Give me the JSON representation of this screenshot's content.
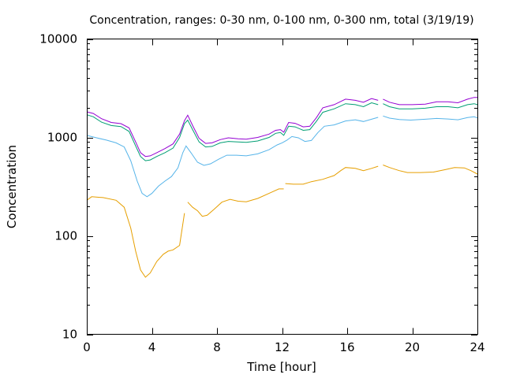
{
  "chart_data": {
    "type": "line",
    "title": "Concentration, ranges: 0-30 nm, 0-100 nm, 0-300 nm, total (3/19/19)",
    "xlabel": "Time [hour]",
    "ylabel": "Concentration",
    "xlim": [
      0,
      24
    ],
    "ylim": [
      10,
      10000
    ],
    "yscale": "log",
    "grid": false,
    "x_ticks": [
      0,
      4,
      8,
      12,
      16,
      20,
      24
    ],
    "x_tick_labels": [
      "0",
      "4",
      "8",
      "12",
      "16",
      "20",
      "24"
    ],
    "y_ticks": [
      10,
      100,
      1000,
      10000
    ],
    "y_tick_labels": [
      "10",
      "100",
      "1000",
      "10000"
    ],
    "series": [
      {
        "color": "#e69f00",
        "segments": [
          [
            [
              0,
              230
            ],
            [
              0.3,
              250
            ],
            [
              1,
              245
            ],
            [
              1.8,
              230
            ],
            [
              2.3,
              195
            ],
            [
              2.7,
              120
            ],
            [
              3,
              70
            ],
            [
              3.3,
              45
            ],
            [
              3.6,
              38
            ],
            [
              3.9,
              42
            ],
            [
              4.3,
              55
            ],
            [
              4.7,
              65
            ],
            [
              5,
              70
            ],
            [
              5.3,
              72
            ],
            [
              5.7,
              80
            ],
            [
              6,
              170
            ]
          ],
          [
            [
              6.2,
              220
            ],
            [
              6.5,
              195
            ],
            [
              6.8,
              180
            ],
            [
              7.1,
              158
            ],
            [
              7.4,
              162
            ],
            [
              7.8,
              185
            ],
            [
              8.3,
              220
            ],
            [
              8.8,
              235
            ],
            [
              9.3,
              225
            ],
            [
              9.8,
              222
            ],
            [
              10.5,
              240
            ],
            [
              11.3,
              275
            ],
            [
              11.8,
              300
            ],
            [
              12.1,
              300
            ]
          ],
          [
            [
              12.2,
              340
            ],
            [
              12.7,
              335
            ],
            [
              13.3,
              335
            ],
            [
              13.8,
              355
            ],
            [
              14.5,
              375
            ],
            [
              15.2,
              410
            ],
            [
              15.6,
              460
            ],
            [
              15.9,
              495
            ],
            [
              16.5,
              485
            ],
            [
              17,
              460
            ],
            [
              17.5,
              485
            ],
            [
              17.9,
              510
            ]
          ],
          [
            [
              18.2,
              525
            ],
            [
              18.6,
              495
            ],
            [
              19.2,
              460
            ],
            [
              19.7,
              440
            ],
            [
              20.5,
              440
            ],
            [
              21.3,
              445
            ],
            [
              22,
              470
            ],
            [
              22.6,
              495
            ],
            [
              23.2,
              490
            ],
            [
              23.6,
              460
            ],
            [
              24,
              425
            ]
          ]
        ]
      },
      {
        "color": "#56b4e9",
        "segments": [
          [
            [
              0,
              1050
            ],
            [
              0.5,
              1000
            ],
            [
              1.2,
              940
            ],
            [
              1.8,
              880
            ],
            [
              2.3,
              800
            ],
            [
              2.7,
              580
            ],
            [
              3.1,
              360
            ],
            [
              3.4,
              270
            ],
            [
              3.7,
              250
            ],
            [
              4,
              270
            ],
            [
              4.4,
              320
            ],
            [
              4.8,
              360
            ],
            [
              5.2,
              400
            ],
            [
              5.6,
              490
            ],
            [
              5.9,
              700
            ],
            [
              6.1,
              820
            ],
            [
              6.4,
              700
            ],
            [
              6.8,
              560
            ],
            [
              7.2,
              520
            ],
            [
              7.6,
              540
            ],
            [
              8.1,
              600
            ],
            [
              8.6,
              660
            ],
            [
              9.2,
              660
            ],
            [
              9.8,
              650
            ],
            [
              10.5,
              680
            ],
            [
              11.2,
              750
            ],
            [
              11.7,
              840
            ],
            [
              12,
              880
            ],
            [
              12.3,
              940
            ],
            [
              12.6,
              1020
            ],
            [
              13,
              990
            ],
            [
              13.4,
              910
            ],
            [
              13.8,
              930
            ],
            [
              14.2,
              1120
            ],
            [
              14.6,
              1300
            ],
            [
              15.2,
              1340
            ],
            [
              15.9,
              1470
            ],
            [
              16.5,
              1510
            ],
            [
              17,
              1450
            ],
            [
              17.5,
              1530
            ],
            [
              17.9,
              1600
            ]
          ],
          [
            [
              18.2,
              1650
            ],
            [
              18.6,
              1570
            ],
            [
              19.2,
              1520
            ],
            [
              19.9,
              1500
            ],
            [
              20.8,
              1530
            ],
            [
              21.5,
              1560
            ],
            [
              22.2,
              1540
            ],
            [
              22.8,
              1510
            ],
            [
              23.4,
              1590
            ],
            [
              23.8,
              1620
            ],
            [
              24,
              1580
            ]
          ]
        ]
      },
      {
        "color": "#009e73",
        "segments": [
          [
            [
              0,
              1700
            ],
            [
              0.4,
              1620
            ],
            [
              0.9,
              1430
            ],
            [
              1.5,
              1320
            ],
            [
              2.1,
              1290
            ],
            [
              2.6,
              1150
            ],
            [
              3,
              820
            ],
            [
              3.3,
              640
            ],
            [
              3.6,
              580
            ],
            [
              3.9,
              590
            ],
            [
              4.3,
              640
            ],
            [
              4.8,
              700
            ],
            [
              5.3,
              780
            ],
            [
              5.7,
              1000
            ],
            [
              6,
              1380
            ],
            [
              6.2,
              1500
            ],
            [
              6.5,
              1200
            ],
            [
              6.9,
              900
            ],
            [
              7.3,
              800
            ],
            [
              7.7,
              810
            ],
            [
              8.2,
              880
            ],
            [
              8.7,
              910
            ],
            [
              9.3,
              900
            ],
            [
              9.8,
              890
            ],
            [
              10.5,
              920
            ],
            [
              11.2,
              1000
            ],
            [
              11.6,
              1100
            ],
            [
              11.9,
              1120
            ],
            [
              12.1,
              1050
            ],
            [
              12.4,
              1300
            ],
            [
              12.8,
              1280
            ],
            [
              13.3,
              1180
            ],
            [
              13.7,
              1200
            ],
            [
              14.1,
              1450
            ],
            [
              14.5,
              1800
            ],
            [
              15.2,
              1950
            ],
            [
              15.9,
              2200
            ],
            [
              16.5,
              2150
            ],
            [
              17,
              2050
            ],
            [
              17.5,
              2250
            ],
            [
              17.9,
              2150
            ]
          ],
          [
            [
              18.2,
              2200
            ],
            [
              18.6,
              2050
            ],
            [
              19.2,
              1950
            ],
            [
              20,
              1950
            ],
            [
              20.8,
              1980
            ],
            [
              21.5,
              2050
            ],
            [
              22.2,
              2050
            ],
            [
              22.8,
              2000
            ],
            [
              23.4,
              2150
            ],
            [
              23.8,
              2200
            ],
            [
              24,
              2150
            ]
          ]
        ]
      },
      {
        "color": "#9400d3",
        "segments": [
          [
            [
              0,
              1820
            ],
            [
              0.4,
              1750
            ],
            [
              0.9,
              1550
            ],
            [
              1.5,
              1420
            ],
            [
              2.1,
              1380
            ],
            [
              2.6,
              1250
            ],
            [
              3,
              900
            ],
            [
              3.3,
              700
            ],
            [
              3.6,
              640
            ],
            [
              3.9,
              650
            ],
            [
              4.3,
              700
            ],
            [
              4.8,
              770
            ],
            [
              5.3,
              860
            ],
            [
              5.7,
              1080
            ],
            [
              6,
              1480
            ],
            [
              6.2,
              1680
            ],
            [
              6.5,
              1320
            ],
            [
              6.9,
              980
            ],
            [
              7.3,
              870
            ],
            [
              7.7,
              880
            ],
            [
              8.2,
              950
            ],
            [
              8.7,
              990
            ],
            [
              9.3,
              970
            ],
            [
              9.8,
              960
            ],
            [
              10.5,
              1000
            ],
            [
              11.2,
              1080
            ],
            [
              11.6,
              1180
            ],
            [
              11.9,
              1200
            ],
            [
              12.1,
              1130
            ],
            [
              12.4,
              1420
            ],
            [
              12.8,
              1390
            ],
            [
              13.3,
              1280
            ],
            [
              13.7,
              1300
            ],
            [
              14.1,
              1580
            ],
            [
              14.5,
              2000
            ],
            [
              15.2,
              2150
            ],
            [
              15.9,
              2450
            ],
            [
              16.5,
              2380
            ],
            [
              17,
              2280
            ],
            [
              17.5,
              2480
            ],
            [
              17.9,
              2380
            ]
          ],
          [
            [
              18.2,
              2450
            ],
            [
              18.6,
              2280
            ],
            [
              19.2,
              2150
            ],
            [
              20,
              2150
            ],
            [
              20.8,
              2180
            ],
            [
              21.5,
              2300
            ],
            [
              22.2,
              2300
            ],
            [
              22.8,
              2250
            ],
            [
              23.4,
              2450
            ],
            [
              23.8,
              2550
            ],
            [
              24,
              2550
            ]
          ]
        ]
      }
    ]
  }
}
